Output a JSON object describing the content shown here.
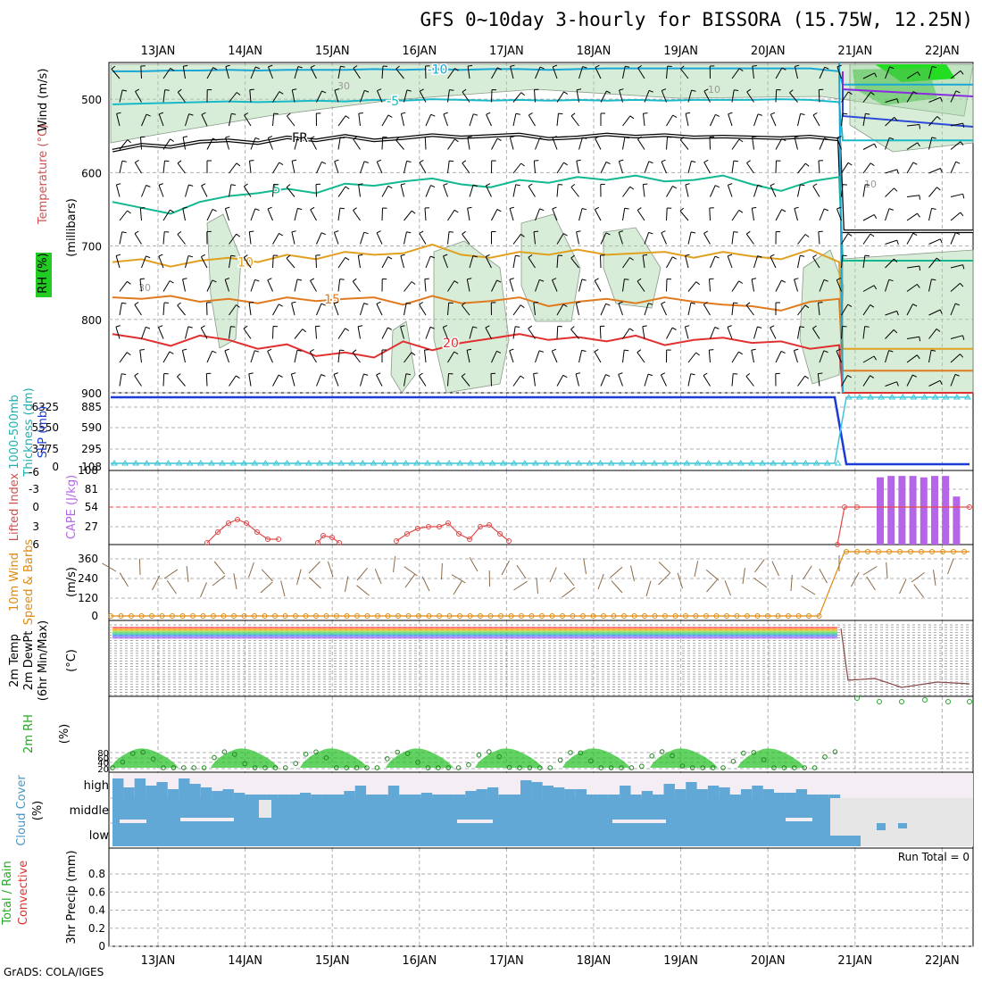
{
  "title": "GFS 0~10day 3-hourly for BISSORA (15.75W, 12.25N)",
  "credit": "GrADS: COLA/IGES",
  "run_total_label": "Run Total = 0",
  "dates": [
    "13JAN",
    "14JAN",
    "15JAN",
    "16JAN",
    "17JAN",
    "18JAN",
    "19JAN",
    "20JAN",
    "21JAN",
    "22JAN"
  ],
  "colors": {
    "temp_warm": "#e07a1f",
    "temp_cold": "#1aa7d6",
    "rh_fill": "#a6d8a6",
    "cape_bar": "#b566e8",
    "cloud": "#62a8d6",
    "slp": "#1c3bd6",
    "thickness": "#3cc6d6",
    "lifted": "#e04a4a",
    "wind_speed": "#e08a10",
    "rh2m": "#1fbf1f"
  },
  "chart_data": [
    {
      "type": "line",
      "panel": "upper-air",
      "ylabel_parts": [
        "RH (%)",
        "Temperature (°C)",
        "Wind (m/s)",
        "(millibars)"
      ],
      "yticks": [
        500,
        600,
        700,
        800,
        900
      ],
      "ylim": [
        450,
        900
      ],
      "isotherms": [
        {
          "label": "-10",
          "levels": [
            462,
            462,
            461,
            461,
            460,
            461,
            460,
            460,
            460,
            459,
            460,
            459,
            460,
            459,
            459,
            460,
            459,
            458,
            458,
            458,
            458,
            458,
            458,
            458,
            458,
            462
          ]
        },
        {
          "label": "-5",
          "levels": [
            507,
            506,
            505,
            504,
            503,
            504,
            503,
            502,
            503,
            501,
            502,
            500,
            501,
            502,
            501,
            502,
            501,
            502,
            501,
            502,
            501,
            501,
            501,
            500,
            501,
            504
          ]
        },
        {
          "label": "FR",
          "levels": [
            570,
            562,
            565,
            558,
            556,
            560,
            552,
            556,
            550,
            556,
            553,
            549,
            552,
            550,
            548,
            554,
            552,
            548,
            551,
            549,
            552,
            551,
            552,
            553,
            551,
            555
          ]
        },
        {
          "label": "5",
          "levels": [
            640,
            648,
            656,
            640,
            632,
            628,
            622,
            628,
            615,
            618,
            612,
            608,
            616,
            620,
            610,
            614,
            606,
            610,
            604,
            612,
            610,
            604,
            616,
            625,
            612,
            606
          ]
        },
        {
          "label": "10",
          "levels": [
            722,
            718,
            728,
            720,
            716,
            722,
            712,
            718,
            708,
            712,
            710,
            698,
            712,
            716,
            708,
            712,
            705,
            712,
            710,
            708,
            716,
            708,
            714,
            718,
            705,
            722
          ]
        },
        {
          "label": "15",
          "levels": [
            770,
            772,
            768,
            776,
            772,
            778,
            770,
            775,
            772,
            770,
            780,
            768,
            778,
            775,
            770,
            782,
            776,
            772,
            778,
            770,
            776,
            780,
            782,
            788,
            776,
            772
          ]
        },
        {
          "label": "20",
          "levels": [
            820,
            826,
            836,
            822,
            828,
            840,
            834,
            850,
            845,
            852,
            830,
            842,
            832,
            826,
            820,
            828,
            824,
            830,
            822,
            835,
            828,
            825,
            832,
            830,
            840,
            835
          ]
        }
      ],
      "rh_contour_labels": [
        "30",
        "10",
        "10",
        "30"
      ]
    },
    {
      "type": "line",
      "panel": "slp-thickness",
      "ylabel": "1000-500mb Thickness (dm) / SLP (mb)",
      "left_ticks": [
        "6325",
        "5550",
        "3775",
        "0"
      ],
      "right_ticks": [
        "885",
        "590",
        "295",
        "108"
      ],
      "series": [
        {
          "name": "SLP (mb)",
          "values_segments": "high until 20JAN then drop to 108"
        },
        {
          "name": "1000-500mb Thickness (dm)",
          "values_segments": "low until 20JAN then rise"
        }
      ]
    },
    {
      "type": "bar",
      "panel": "cape-li",
      "ylabel_parts": [
        "Lifted Index",
        "CAPE (J/kg)"
      ],
      "left_ticks": [
        "-6",
        "-3",
        "0",
        "3",
        "6"
      ],
      "right_ticks": [
        "108",
        "81",
        "54",
        "27"
      ],
      "cape_values": [
        0,
        0,
        0,
        0,
        0,
        0,
        0,
        0,
        0,
        0,
        0,
        0,
        0,
        0,
        0,
        0,
        0,
        0,
        0,
        0,
        0,
        0,
        0,
        0,
        0,
        0,
        0,
        0,
        0,
        0,
        0,
        0,
        0,
        0,
        0,
        0,
        0,
        0,
        0,
        0,
        0,
        0,
        0,
        0,
        0,
        0,
        0,
        0,
        0,
        0,
        0,
        0,
        0,
        0,
        0,
        0,
        0,
        0,
        0,
        0,
        0,
        0,
        0,
        0,
        0,
        0,
        0,
        0,
        0,
        0,
        0,
        0,
        0,
        0,
        0,
        0,
        0,
        0,
        0,
        0,
        0,
        0,
        0,
        0,
        0,
        0,
        0,
        0,
        0,
        0,
        0,
        0,
        0,
        0,
        0,
        0,
        0,
        0,
        0,
        0,
        0,
        0,
        0,
        0,
        0,
        0,
        0,
        0,
        0,
        0,
        0,
        0,
        0,
        0,
        0,
        0,
        0,
        0,
        0,
        0,
        0,
        0,
        0,
        0,
        0,
        0,
        0,
        0,
        0,
        0,
        0,
        0,
        0,
        0,
        0,
        0,
        0,
        0,
        0,
        0,
        0,
        0,
        0,
        0,
        0,
        0,
        0,
        0,
        0,
        0,
        0,
        0,
        0,
        0,
        0,
        0,
        0,
        0,
        0,
        0,
        0,
        0,
        0,
        0,
        0,
        0,
        0,
        0,
        0,
        0,
        0,
        0,
        0,
        0,
        0,
        0,
        0,
        0,
        0,
        0,
        0,
        0,
        0,
        0,
        0,
        0,
        0,
        0,
        0,
        0,
        0,
        0,
        0,
        0,
        0,
        0,
        0,
        0,
        0,
        0,
        0,
        0,
        0,
        0,
        0,
        0,
        0,
        0,
        0,
        0,
        0,
        0,
        0,
        0,
        0,
        0,
        0,
        0,
        0,
        0,
        0,
        0,
        0,
        0,
        0,
        0,
        0,
        0,
        0,
        0,
        0,
        0,
        0,
        0,
        0,
        0,
        0,
        0,
        0,
        0,
        0,
        0,
        0,
        0,
        0,
        0,
        0,
        0,
        0,
        0,
        0,
        0,
        0,
        0,
        0,
        0,
        0,
        0
      ],
      "cape_late": [
        98,
        100,
        100,
        100,
        98,
        100,
        100,
        70
      ],
      "li_segments": "episodic positive values 14JAN, 15JAN, 16JAN-17JAN; 0 after 21JAN"
    },
    {
      "type": "line",
      "panel": "wind10m",
      "ylabel_parts": [
        "10m Wind Speed & Barbs",
        "(m/s)"
      ],
      "yticks": [
        "0",
        "120",
        "240",
        "360"
      ]
    },
    {
      "type": "line",
      "panel": "temp2m",
      "ylabel_parts": [
        "2m Temp",
        "2m DewPt",
        "(6hr Min/Max)",
        "(°C)"
      ]
    },
    {
      "type": "area",
      "panel": "rh2m",
      "ylabel_parts": [
        "2m RH",
        "(%)"
      ],
      "yticks": [
        "20",
        "40",
        "60",
        "80"
      ]
    },
    {
      "type": "heatmap",
      "panel": "cloud",
      "ylabel": "Cloud Cover (%)",
      "rows": [
        "high",
        "middle",
        "low"
      ]
    },
    {
      "type": "bar",
      "panel": "precip",
      "ylabel_parts": [
        "3hr Precip (mm)",
        "Total / Rain",
        "Convective"
      ],
      "yticks": [
        "0",
        "0.2",
        "0.4",
        "0.6",
        "0.8"
      ],
      "ylim": [
        0,
        1
      ],
      "values": []
    }
  ]
}
